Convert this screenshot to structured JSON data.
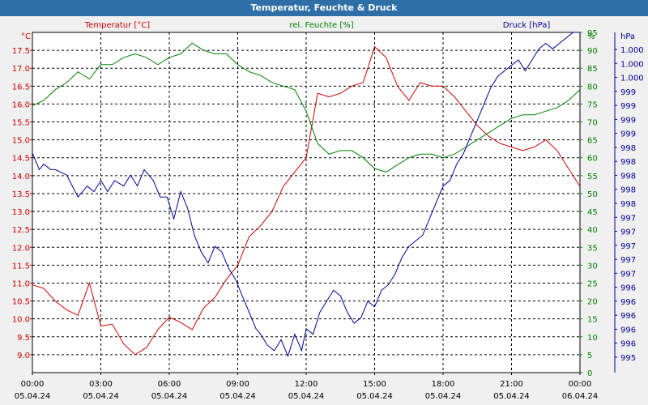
{
  "window": {
    "title": "Temperatur, Feuchte & Druck"
  },
  "colors": {
    "temperature": "#cc0000",
    "humidity": "#008000",
    "pressure": "#000099",
    "grid": "#000000",
    "background": "#ffffff"
  },
  "chart_data": {
    "type": "line",
    "title": "Temperatur, Feuchte & Druck",
    "grid": true,
    "x_ticks": [
      {
        "time": "00:00",
        "date": "05.04.24"
      },
      {
        "time": "03:00",
        "date": "05.04.24"
      },
      {
        "time": "06:00",
        "date": "05.04.24"
      },
      {
        "time": "09:00",
        "date": "05.04.24"
      },
      {
        "time": "12:00",
        "date": "05.04.24"
      },
      {
        "time": "15:00",
        "date": "05.04.24"
      },
      {
        "time": "18:00",
        "date": "05.04.24"
      },
      {
        "time": "21:00",
        "date": "05.04.24"
      },
      {
        "time": "00:00",
        "date": "06.04.24"
      }
    ],
    "axes": {
      "temperature": {
        "unit": "°C",
        "range": [
          8.5,
          18.0
        ],
        "ticks": [
          "9.0",
          "9.5",
          "10.0",
          "10.5",
          "11.0",
          "11.5",
          "12.0",
          "12.5",
          "13.0",
          "13.5",
          "14.0",
          "14.5",
          "15.0",
          "15.5",
          "16.0",
          "16.5",
          "17.0",
          "17.5"
        ]
      },
      "humidity": {
        "unit": "%",
        "range": [
          0,
          95
        ],
        "ticks": [
          "0",
          "5",
          "10",
          "15",
          "20",
          "25",
          "30",
          "35",
          "40",
          "45",
          "50",
          "55",
          "60",
          "65",
          "70",
          "75",
          "80",
          "85",
          "90",
          "95"
        ]
      },
      "pressure": {
        "unit": "hPa",
        "range": [
          994.6,
          1000.8
        ],
        "ticks": [
          "995",
          "996",
          "996",
          "996",
          "996",
          "996",
          "997",
          "997",
          "997",
          "997",
          "997",
          "998",
          "998",
          "998",
          "998",
          "998",
          "999",
          "999",
          "999",
          "999",
          "1.000",
          "1.000",
          "1.000"
        ]
      }
    },
    "series": [
      {
        "name": "Temperatur [°C]",
        "axis": "temperature",
        "x_hours": [
          0,
          0.5,
          1,
          1.5,
          2,
          2.5,
          3,
          3.5,
          4,
          4.5,
          5,
          5.5,
          6,
          6.5,
          7,
          7.5,
          8,
          8.5,
          9,
          9.5,
          10,
          10.5,
          11,
          11.5,
          12,
          12.5,
          13,
          13.5,
          14,
          14.5,
          15,
          15.5,
          16,
          16.5,
          17,
          17.5,
          18,
          18.5,
          19,
          19.5,
          20,
          20.5,
          21,
          21.5,
          22,
          22.5,
          23,
          23.5,
          24
        ],
        "values": [
          10.95,
          10.85,
          10.5,
          10.25,
          10.1,
          11.0,
          9.8,
          9.85,
          9.3,
          9.0,
          9.2,
          9.7,
          10.05,
          9.9,
          9.7,
          10.3,
          10.6,
          11.1,
          11.5,
          12.3,
          12.6,
          13.0,
          13.7,
          14.1,
          14.5,
          16.3,
          16.2,
          16.3,
          16.5,
          16.6,
          17.6,
          17.3,
          16.5,
          16.1,
          16.6,
          16.5,
          16.5,
          16.2,
          15.8,
          15.4,
          15.1,
          14.9,
          14.8,
          14.7,
          14.8,
          15.0,
          14.7,
          14.2,
          13.7
        ]
      },
      {
        "name": "rel. Feuchte [%]",
        "axis": "humidity",
        "x_hours": [
          0,
          0.5,
          1,
          1.5,
          2,
          2.5,
          3,
          3.5,
          4,
          4.5,
          5,
          5.5,
          6,
          6.5,
          7,
          7.5,
          8,
          8.5,
          9,
          9.5,
          10,
          10.5,
          11,
          11.5,
          12,
          12.5,
          13,
          13.5,
          14,
          14.5,
          15,
          15.5,
          16,
          16.5,
          17,
          17.5,
          18,
          18.5,
          19,
          19.5,
          20,
          20.5,
          21,
          21.5,
          22,
          22.5,
          23,
          23.5,
          24
        ],
        "values": [
          74.5,
          76,
          79,
          81,
          84,
          82,
          86,
          86,
          88,
          89,
          88,
          86,
          88,
          89,
          92,
          90,
          89,
          89,
          86,
          84,
          83,
          81,
          80,
          79,
          73,
          64,
          61,
          62,
          62,
          60,
          57,
          56,
          58,
          60,
          61,
          61,
          60,
          61,
          63,
          65,
          67,
          69,
          71,
          72,
          72,
          73,
          74,
          76,
          79
        ]
      },
      {
        "name": "Druck [hPa]",
        "axis": "pressure",
        "x_hours": [
          0,
          0.3,
          0.5,
          0.8,
          1,
          1.5,
          2,
          2.4,
          2.7,
          3,
          3.3,
          3.6,
          4,
          4.3,
          4.6,
          4.9,
          5.3,
          5.6,
          5.9,
          6.2,
          6.5,
          6.8,
          7.1,
          7.4,
          7.7,
          8,
          8.3,
          8.6,
          8.9,
          9.2,
          9.5,
          9.8,
          10,
          10.3,
          10.6,
          10.9,
          11.2,
          11.5,
          11.8,
          12,
          12.3,
          12.6,
          12.9,
          13.2,
          13.5,
          13.8,
          14.1,
          14.4,
          14.7,
          15,
          15.3,
          15.6,
          15.9,
          16.2,
          16.5,
          16.8,
          17.1,
          17.4,
          17.7,
          18,
          18.3,
          18.6,
          18.9,
          19.2,
          19.5,
          19.8,
          20.1,
          20.4,
          20.7,
          21,
          21.3,
          21.6,
          21.9,
          22.2,
          22.5,
          22.8,
          23.1,
          23.4,
          23.7,
          24
        ],
        "values": [
          998.6,
          998.3,
          998.4,
          998.3,
          998.3,
          998.2,
          997.8,
          998.0,
          997.9,
          998.1,
          997.9,
          998.1,
          998.0,
          998.2,
          998.0,
          998.3,
          998.1,
          997.8,
          997.8,
          997.4,
          997.9,
          997.6,
          997.1,
          996.8,
          996.6,
          996.9,
          996.8,
          996.5,
          996.3,
          996.0,
          995.7,
          995.4,
          995.3,
          995.1,
          995.0,
          995.2,
          994.9,
          995.3,
          995.0,
          995.4,
          995.3,
          995.7,
          995.9,
          996.1,
          996.0,
          995.7,
          995.5,
          995.6,
          995.9,
          995.8,
          996.1,
          996.2,
          996.4,
          996.7,
          996.9,
          997.0,
          997.1,
          997.4,
          997.7,
          998.0,
          998.1,
          998.4,
          998.6,
          998.9,
          999.2,
          999.5,
          999.8,
          1000.0,
          1000.1,
          1000.2,
          1000.3,
          1000.1,
          1000.3,
          1000.5,
          1000.6,
          1000.5,
          1000.6,
          1000.7,
          1000.8,
          1000.8
        ]
      }
    ]
  }
}
